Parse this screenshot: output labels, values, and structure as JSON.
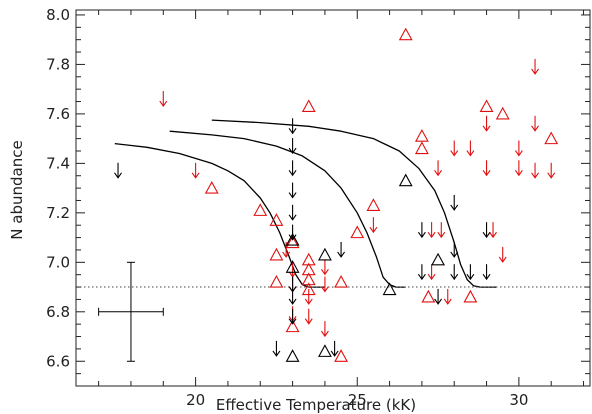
{
  "chart_data": {
    "type": "scatter",
    "title": "",
    "xlabel": "Effective Temperature (kK)",
    "ylabel": "N abundance",
    "xlim": [
      16.3,
      32.2
    ],
    "ylim": [
      6.5,
      8.02
    ],
    "xticks": [
      20,
      25,
      30
    ],
    "yticks": [
      6.6,
      6.8,
      7.0,
      7.2,
      7.4,
      7.6,
      7.8,
      8.0
    ],
    "x_minor_step": 1,
    "y_minor_step": 0.05,
    "grid": false,
    "colors": {
      "red": "#e01010",
      "black": "#000000",
      "axis": "#222222"
    },
    "reference_line": {
      "y": 6.9,
      "style": "dotted",
      "color": "#444444"
    },
    "error_bar": {
      "x": 18.0,
      "y": 6.8,
      "x_err": 1.0,
      "y_err": 0.2
    },
    "curves": [
      {
        "x": [
          17.5,
          18.5,
          19.5,
          20.5,
          21.0,
          21.5,
          22.0,
          22.3,
          22.6,
          22.9,
          23.1,
          23.3,
          23.5,
          23.7,
          24.0
        ],
        "y": [
          7.48,
          7.465,
          7.44,
          7.4,
          7.37,
          7.33,
          7.26,
          7.2,
          7.12,
          7.02,
          6.95,
          6.91,
          6.9,
          6.9,
          6.9
        ]
      },
      {
        "x": [
          19.2,
          20.5,
          21.5,
          22.5,
          23.3,
          24.0,
          24.5,
          25.0,
          25.3,
          25.6,
          25.8,
          26.0,
          26.2,
          26.5
        ],
        "y": [
          7.53,
          7.515,
          7.5,
          7.47,
          7.43,
          7.37,
          7.3,
          7.2,
          7.12,
          7.02,
          6.94,
          6.91,
          6.9,
          6.9
        ]
      },
      {
        "x": [
          20.5,
          22.0,
          23.5,
          24.5,
          25.5,
          26.3,
          26.9,
          27.4,
          27.7,
          28.0,
          28.2,
          28.4,
          28.6,
          28.8,
          29.3
        ],
        "y": [
          7.575,
          7.565,
          7.55,
          7.53,
          7.5,
          7.45,
          7.38,
          7.29,
          7.2,
          7.08,
          6.99,
          6.93,
          6.905,
          6.9,
          6.9
        ]
      }
    ],
    "series": [
      {
        "name": "",
        "color": "red",
        "points": [
          {
            "x": 26.5,
            "y": 7.92,
            "m": "triangle"
          },
          {
            "x": 30.5,
            "y": 7.79,
            "m": "arrow"
          },
          {
            "x": 19.0,
            "y": 7.66,
            "m": "arrow"
          },
          {
            "x": 23.5,
            "y": 7.63,
            "m": "triangle"
          },
          {
            "x": 29.0,
            "y": 7.63,
            "m": "triangle"
          },
          {
            "x": 29.5,
            "y": 7.6,
            "m": "triangle"
          },
          {
            "x": 29.0,
            "y": 7.56,
            "m": "arrow"
          },
          {
            "x": 30.5,
            "y": 7.56,
            "m": "arrow"
          },
          {
            "x": 27.0,
            "y": 7.51,
            "m": "triangle"
          },
          {
            "x": 31.0,
            "y": 7.5,
            "m": "triangle"
          },
          {
            "x": 27.0,
            "y": 7.46,
            "m": "triangle"
          },
          {
            "x": 28.0,
            "y": 7.46,
            "m": "arrow"
          },
          {
            "x": 28.5,
            "y": 7.46,
            "m": "arrow"
          },
          {
            "x": 30.0,
            "y": 7.46,
            "m": "arrow"
          },
          {
            "x": 30.0,
            "y": 7.38,
            "m": "arrow"
          },
          {
            "x": 27.5,
            "y": 7.38,
            "m": "arrow"
          },
          {
            "x": 29.0,
            "y": 7.38,
            "m": "arrow"
          },
          {
            "x": 20.0,
            "y": 7.37,
            "m": "arrow"
          },
          {
            "x": 30.5,
            "y": 7.37,
            "m": "arrow"
          },
          {
            "x": 31.0,
            "y": 7.37,
            "m": "arrow"
          },
          {
            "x": 20.5,
            "y": 7.3,
            "m": "triangle"
          },
          {
            "x": 25.5,
            "y": 7.23,
            "m": "triangle"
          },
          {
            "x": 22.0,
            "y": 7.21,
            "m": "triangle"
          },
          {
            "x": 22.5,
            "y": 7.17,
            "m": "triangle"
          },
          {
            "x": 25.5,
            "y": 7.15,
            "m": "arrow"
          },
          {
            "x": 27.3,
            "y": 7.13,
            "m": "arrow"
          },
          {
            "x": 27.6,
            "y": 7.13,
            "m": "arrow"
          },
          {
            "x": 29.2,
            "y": 7.13,
            "m": "arrow"
          },
          {
            "x": 25.0,
            "y": 7.12,
            "m": "triangle"
          },
          {
            "x": 23.0,
            "y": 7.08,
            "m": "triangle"
          },
          {
            "x": 22.8,
            "y": 7.05,
            "m": "arrow"
          },
          {
            "x": 22.5,
            "y": 7.03,
            "m": "triangle"
          },
          {
            "x": 23.5,
            "y": 7.01,
            "m": "triangle"
          },
          {
            "x": 29.5,
            "y": 7.03,
            "m": "arrow"
          },
          {
            "x": 23.5,
            "y": 6.97,
            "m": "triangle"
          },
          {
            "x": 24.0,
            "y": 6.98,
            "m": "arrow"
          },
          {
            "x": 23.0,
            "y": 6.97,
            "m": "arrow"
          },
          {
            "x": 27.3,
            "y": 6.96,
            "m": "arrow"
          },
          {
            "x": 23.5,
            "y": 6.93,
            "m": "triangle"
          },
          {
            "x": 22.5,
            "y": 6.92,
            "m": "triangle"
          },
          {
            "x": 24.5,
            "y": 6.92,
            "m": "triangle"
          },
          {
            "x": 23.0,
            "y": 6.91,
            "m": "arrow"
          },
          {
            "x": 24.0,
            "y": 6.91,
            "m": "arrow"
          },
          {
            "x": 23.5,
            "y": 6.89,
            "m": "triangle"
          },
          {
            "x": 23.5,
            "y": 6.86,
            "m": "arrow"
          },
          {
            "x": 27.2,
            "y": 6.86,
            "m": "triangle"
          },
          {
            "x": 28.5,
            "y": 6.86,
            "m": "triangle"
          },
          {
            "x": 27.8,
            "y": 6.86,
            "m": "arrow"
          },
          {
            "x": 23.0,
            "y": 6.79,
            "m": "arrow"
          },
          {
            "x": 23.5,
            "y": 6.78,
            "m": "arrow"
          },
          {
            "x": 23.0,
            "y": 6.74,
            "m": "triangle"
          },
          {
            "x": 24.0,
            "y": 6.73,
            "m": "arrow"
          },
          {
            "x": 24.5,
            "y": 6.62,
            "m": "triangle"
          }
        ]
      },
      {
        "name": "",
        "color": "black",
        "points": [
          {
            "x": 23.0,
            "y": 7.55,
            "m": "arrow"
          },
          {
            "x": 23.0,
            "y": 7.47,
            "m": "arrow"
          },
          {
            "x": 23.0,
            "y": 7.38,
            "m": "arrow"
          },
          {
            "x": 17.6,
            "y": 7.37,
            "m": "arrow"
          },
          {
            "x": 23.0,
            "y": 7.29,
            "m": "arrow"
          },
          {
            "x": 26.5,
            "y": 7.33,
            "m": "triangle"
          },
          {
            "x": 28.0,
            "y": 7.24,
            "m": "arrow"
          },
          {
            "x": 23.0,
            "y": 7.2,
            "m": "arrow"
          },
          {
            "x": 27.0,
            "y": 7.13,
            "m": "arrow"
          },
          {
            "x": 29.0,
            "y": 7.13,
            "m": "arrow"
          },
          {
            "x": 23.0,
            "y": 7.12,
            "m": "arrow"
          },
          {
            "x": 23.0,
            "y": 7.09,
            "m": "triangle"
          },
          {
            "x": 28.0,
            "y": 7.05,
            "m": "arrow"
          },
          {
            "x": 24.5,
            "y": 7.05,
            "m": "arrow"
          },
          {
            "x": 24.0,
            "y": 7.03,
            "m": "triangle"
          },
          {
            "x": 27.5,
            "y": 7.01,
            "m": "triangle"
          },
          {
            "x": 23.0,
            "y": 6.98,
            "m": "triangle"
          },
          {
            "x": 28.0,
            "y": 6.96,
            "m": "arrow"
          },
          {
            "x": 27.0,
            "y": 6.96,
            "m": "arrow"
          },
          {
            "x": 29.0,
            "y": 6.96,
            "m": "arrow"
          },
          {
            "x": 28.5,
            "y": 6.96,
            "m": "arrow"
          },
          {
            "x": 23.0,
            "y": 6.91,
            "m": "arrow"
          },
          {
            "x": 26.0,
            "y": 6.89,
            "m": "triangle"
          },
          {
            "x": 27.5,
            "y": 6.86,
            "m": "arrow"
          },
          {
            "x": 23.0,
            "y": 6.86,
            "m": "arrow"
          },
          {
            "x": 23.0,
            "y": 6.78,
            "m": "arrow"
          },
          {
            "x": 22.5,
            "y": 6.65,
            "m": "arrow"
          },
          {
            "x": 23.0,
            "y": 6.62,
            "m": "triangle"
          },
          {
            "x": 24.0,
            "y": 6.64,
            "m": "triangle"
          },
          {
            "x": 24.3,
            "y": 6.65,
            "m": "arrow"
          }
        ]
      }
    ]
  }
}
